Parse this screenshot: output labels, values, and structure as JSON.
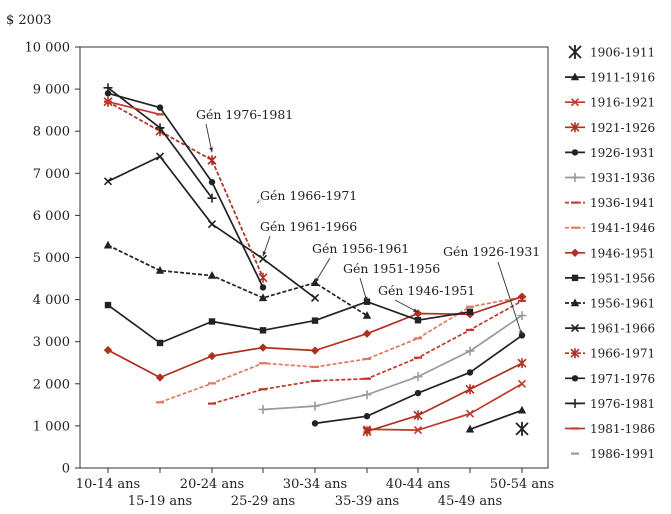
{
  "chart_data": {
    "type": "line",
    "title": "",
    "ylabel": "$ 2003",
    "xlabel": "",
    "ylim": [
      0,
      10000
    ],
    "yticks": [
      0,
      1000,
      2000,
      3000,
      4000,
      5000,
      6000,
      7000,
      8000,
      9000,
      10000
    ],
    "ytick_labels": [
      "0",
      "1 000",
      "2 000",
      "3 000",
      "4 000",
      "5 000",
      "6 000",
      "7 000",
      "8 000",
      "9 000",
      "10 000"
    ],
    "categories": [
      "10-14 ans",
      "15-19 ans",
      "20-24 ans",
      "25-29 ans",
      "30-34 ans",
      "35-39 ans",
      "40-44 ans",
      "45-49 ans",
      "50-54 ans"
    ],
    "legend_position": "right",
    "grid": false,
    "series": [
      {
        "name": "1906-1911",
        "color": "#222222",
        "marker": "asterisk",
        "dash": "none",
        "points": [
          [
            "50-54 ans",
            930
          ]
        ]
      },
      {
        "name": "1911-1916",
        "color": "#222222",
        "marker": "triangle",
        "dash": "solid",
        "points": [
          [
            "45-49 ans",
            920
          ],
          [
            "50-54 ans",
            1370
          ]
        ]
      },
      {
        "name": "1916-1921",
        "color": "#c0392b",
        "marker": "x",
        "dash": "solid",
        "points": [
          [
            "35-39 ans",
            920
          ],
          [
            "40-44 ans",
            900
          ],
          [
            "45-49 ans",
            1290
          ],
          [
            "50-54 ans",
            2000
          ]
        ]
      },
      {
        "name": "1921-1926",
        "color": "#b03020",
        "marker": "asterisk",
        "dash": "solid",
        "points": [
          [
            "35-39 ans",
            870
          ],
          [
            "40-44 ans",
            1250
          ],
          [
            "45-49 ans",
            1870
          ],
          [
            "50-54 ans",
            2490
          ]
        ]
      },
      {
        "name": "1926-1931",
        "color": "#222222",
        "marker": "circle",
        "dash": "solid",
        "points": [
          [
            "30-34 ans",
            1060
          ],
          [
            "35-39 ans",
            1230
          ],
          [
            "40-44 ans",
            1780
          ],
          [
            "45-49 ans",
            2270
          ],
          [
            "50-54 ans",
            3150
          ]
        ]
      },
      {
        "name": "1931-1936",
        "color": "#9a9a9a",
        "marker": "plus",
        "dash": "solid",
        "points": [
          [
            "25-29 ans",
            1390
          ],
          [
            "30-34 ans",
            1470
          ],
          [
            "35-39 ans",
            1740
          ],
          [
            "40-44 ans",
            2170
          ],
          [
            "45-49 ans",
            2780
          ],
          [
            "50-54 ans",
            3620
          ]
        ]
      },
      {
        "name": "1936-1941",
        "color": "#c0392b",
        "marker": "dash",
        "dash": "dashed",
        "points": [
          [
            "20-24 ans",
            1530
          ],
          [
            "25-29 ans",
            1870
          ],
          [
            "30-34 ans",
            2070
          ],
          [
            "35-39 ans",
            2120
          ],
          [
            "40-44 ans",
            2620
          ],
          [
            "45-49 ans",
            3280
          ],
          [
            "50-54 ans",
            3970
          ]
        ]
      },
      {
        "name": "1941-1946",
        "color": "#e07a5f",
        "marker": "dash",
        "dash": "dashed",
        "points": [
          [
            "15-19 ans",
            1560
          ],
          [
            "20-24 ans",
            2010
          ],
          [
            "25-29 ans",
            2490
          ],
          [
            "30-34 ans",
            2400
          ],
          [
            "35-39 ans",
            2590
          ],
          [
            "40-44 ans",
            3080
          ],
          [
            "45-49 ans",
            3830
          ],
          [
            "50-54 ans",
            4060
          ]
        ]
      },
      {
        "name": "1946-1951",
        "color": "#b03020",
        "marker": "diamond",
        "dash": "solid",
        "points": [
          [
            "10-14 ans",
            2800
          ],
          [
            "15-19 ans",
            2150
          ],
          [
            "20-24 ans",
            2660
          ],
          [
            "25-29 ans",
            2860
          ],
          [
            "30-34 ans",
            2790
          ],
          [
            "35-39 ans",
            3190
          ],
          [
            "40-44 ans",
            3670
          ],
          [
            "45-49 ans",
            3650
          ],
          [
            "50-54 ans",
            4070
          ]
        ]
      },
      {
        "name": "1951-1956",
        "color": "#222222",
        "marker": "square",
        "dash": "solid",
        "points": [
          [
            "10-14 ans",
            3870
          ],
          [
            "15-19 ans",
            2970
          ],
          [
            "20-24 ans",
            3480
          ],
          [
            "25-29 ans",
            3270
          ],
          [
            "30-34 ans",
            3500
          ],
          [
            "35-39 ans",
            3950
          ],
          [
            "40-44 ans",
            3510
          ],
          [
            "45-49 ans",
            3710
          ]
        ]
      },
      {
        "name": "1956-1961",
        "color": "#222222",
        "marker": "triangle",
        "dash": "dashed",
        "points": [
          [
            "10-14 ans",
            5290
          ],
          [
            "15-19 ans",
            4690
          ],
          [
            "20-24 ans",
            4570
          ],
          [
            "25-29 ans",
            4040
          ],
          [
            "30-34 ans",
            4400
          ],
          [
            "35-39 ans",
            3620
          ]
        ]
      },
      {
        "name": "1961-1966",
        "color": "#222222",
        "marker": "x",
        "dash": "solid",
        "points": [
          [
            "10-14 ans",
            6810
          ],
          [
            "15-19 ans",
            7400
          ],
          [
            "20-24 ans",
            5790
          ],
          [
            "25-29 ans",
            4970
          ],
          [
            "30-34 ans",
            4040
          ]
        ]
      },
      {
        "name": "1966-1971",
        "color": "#b03020",
        "marker": "asterisk",
        "dash": "dashed",
        "points": [
          [
            "10-14 ans",
            8700
          ],
          [
            "15-19 ans",
            8000
          ],
          [
            "20-24 ans",
            7310
          ],
          [
            "25-29 ans",
            4520
          ]
        ]
      },
      {
        "name": "1971-1976",
        "color": "#222222",
        "marker": "circle",
        "dash": "solid",
        "points": [
          [
            "10-14 ans",
            8900
          ],
          [
            "15-19 ans",
            8560
          ],
          [
            "20-24 ans",
            6790
          ],
          [
            "25-29 ans",
            4290
          ]
        ]
      },
      {
        "name": "1976-1981",
        "color": "#222222",
        "marker": "plus",
        "dash": "solid",
        "points": [
          [
            "10-14 ans",
            9030
          ],
          [
            "15-19 ans",
            8080
          ],
          [
            "20-24 ans",
            6410
          ]
        ]
      },
      {
        "name": "1981-1986",
        "color": "#c0392b",
        "marker": "dash",
        "dash": "solid",
        "points": [
          [
            "10-14 ans",
            8700
          ],
          [
            "15-19 ans",
            8400
          ]
        ]
      },
      {
        "name": "1986-1991",
        "color": "#9a9a9a",
        "marker": "dash",
        "dash": "none",
        "points": []
      }
    ],
    "annotations": [
      {
        "text": "Gén 1976-1981",
        "target": [
          "20-24 ans",
          7500
        ]
      },
      {
        "text": "Gén 1966-1971",
        "target": [
          "25-29 ans",
          6400
        ]
      },
      {
        "text": "Gén 1961-1966",
        "target": [
          "25-29 ans",
          5030
        ]
      },
      {
        "text": "Gén 1956-1961",
        "target": [
          "30-34 ans",
          4400
        ]
      },
      {
        "text": "Gén 1951-1956",
        "target": [
          "35-39 ans",
          3950
        ]
      },
      {
        "text": "Gén 1946-1951",
        "target": [
          "40-44 ans",
          3700
        ]
      },
      {
        "text": "Gén 1926-1931",
        "target": [
          "50-54 ans",
          3150
        ]
      }
    ]
  }
}
